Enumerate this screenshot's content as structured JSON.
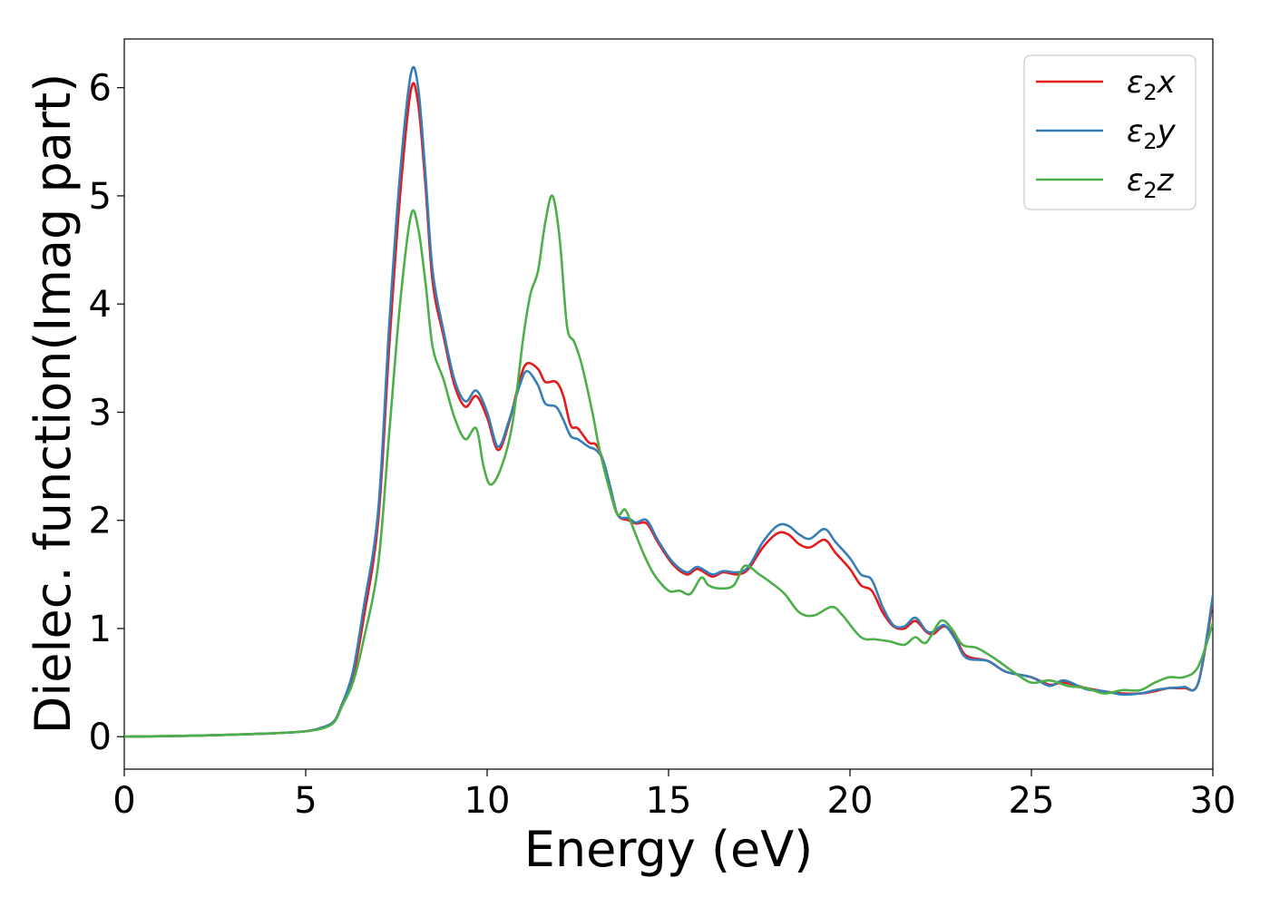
{
  "chart_data": {
    "type": "line",
    "title": "",
    "xlabel": "Energy (eV)",
    "ylabel": "Dielec. function(Imag part)",
    "xlim": [
      0,
      30
    ],
    "ylim": [
      -0.3,
      6.45
    ],
    "xticks": [
      0,
      5,
      10,
      15,
      20,
      25,
      30
    ],
    "yticks": [
      0,
      1,
      2,
      3,
      4,
      5,
      6
    ],
    "grid": false,
    "legend_position": "top-right",
    "series": [
      {
        "name": "ε₂x",
        "legend_base": "ε",
        "legend_sub": "2",
        "legend_var": "x",
        "color": "#e41a1c",
        "points": [
          [
            0,
            0.0
          ],
          [
            2,
            0.01
          ],
          [
            4,
            0.03
          ],
          [
            5,
            0.05
          ],
          [
            5.5,
            0.09
          ],
          [
            5.8,
            0.15
          ],
          [
            6.0,
            0.3
          ],
          [
            6.3,
            0.55
          ],
          [
            6.6,
            1.1
          ],
          [
            7.0,
            2.0
          ],
          [
            7.3,
            3.6
          ],
          [
            7.6,
            5.0
          ],
          [
            7.9,
            5.98
          ],
          [
            8.1,
            5.85
          ],
          [
            8.3,
            5.1
          ],
          [
            8.5,
            4.2
          ],
          [
            8.8,
            3.7
          ],
          [
            9.1,
            3.25
          ],
          [
            9.4,
            3.05
          ],
          [
            9.7,
            3.15
          ],
          [
            10.0,
            2.95
          ],
          [
            10.3,
            2.65
          ],
          [
            10.6,
            2.9
          ],
          [
            10.9,
            3.3
          ],
          [
            11.1,
            3.45
          ],
          [
            11.4,
            3.4
          ],
          [
            11.6,
            3.28
          ],
          [
            11.9,
            3.28
          ],
          [
            12.1,
            3.15
          ],
          [
            12.3,
            2.88
          ],
          [
            12.5,
            2.85
          ],
          [
            12.8,
            2.72
          ],
          [
            13.0,
            2.7
          ],
          [
            13.2,
            2.55
          ],
          [
            13.4,
            2.3
          ],
          [
            13.6,
            2.05
          ],
          [
            13.9,
            2.0
          ],
          [
            14.1,
            1.97
          ],
          [
            14.4,
            1.97
          ],
          [
            14.7,
            1.8
          ],
          [
            15.1,
            1.6
          ],
          [
            15.5,
            1.5
          ],
          [
            15.8,
            1.55
          ],
          [
            16.2,
            1.48
          ],
          [
            16.5,
            1.52
          ],
          [
            16.9,
            1.5
          ],
          [
            17.2,
            1.55
          ],
          [
            17.6,
            1.75
          ],
          [
            18.0,
            1.88
          ],
          [
            18.3,
            1.87
          ],
          [
            18.6,
            1.78
          ],
          [
            18.9,
            1.75
          ],
          [
            19.3,
            1.82
          ],
          [
            19.6,
            1.7
          ],
          [
            20.0,
            1.55
          ],
          [
            20.3,
            1.4
          ],
          [
            20.6,
            1.35
          ],
          [
            20.9,
            1.15
          ],
          [
            21.2,
            1.02
          ],
          [
            21.5,
            1.0
          ],
          [
            21.8,
            1.07
          ],
          [
            22.1,
            0.97
          ],
          [
            22.3,
            0.95
          ],
          [
            22.6,
            1.02
          ],
          [
            22.9,
            0.92
          ],
          [
            23.2,
            0.75
          ],
          [
            23.8,
            0.7
          ],
          [
            24.3,
            0.6
          ],
          [
            25.0,
            0.55
          ],
          [
            25.5,
            0.48
          ],
          [
            25.9,
            0.5
          ],
          [
            26.5,
            0.45
          ],
          [
            27.0,
            0.42
          ],
          [
            27.5,
            0.4
          ],
          [
            28.0,
            0.4
          ],
          [
            28.4,
            0.42
          ],
          [
            28.8,
            0.45
          ],
          [
            29.2,
            0.45
          ],
          [
            29.6,
            0.5
          ],
          [
            30.0,
            1.25
          ]
        ]
      },
      {
        "name": "ε₂y",
        "legend_base": "ε",
        "legend_sub": "2",
        "legend_var": "y",
        "color": "#377eb8",
        "points": [
          [
            0,
            0.0
          ],
          [
            2,
            0.01
          ],
          [
            4,
            0.03
          ],
          [
            5,
            0.05
          ],
          [
            5.5,
            0.09
          ],
          [
            5.8,
            0.15
          ],
          [
            6.0,
            0.3
          ],
          [
            6.3,
            0.6
          ],
          [
            6.6,
            1.2
          ],
          [
            7.0,
            2.1
          ],
          [
            7.3,
            3.8
          ],
          [
            7.6,
            5.2
          ],
          [
            7.9,
            6.13
          ],
          [
            8.1,
            6.0
          ],
          [
            8.3,
            5.2
          ],
          [
            8.5,
            4.3
          ],
          [
            8.8,
            3.75
          ],
          [
            9.1,
            3.3
          ],
          [
            9.4,
            3.1
          ],
          [
            9.7,
            3.2
          ],
          [
            10.0,
            3.0
          ],
          [
            10.3,
            2.68
          ],
          [
            10.6,
            2.92
          ],
          [
            10.9,
            3.25
          ],
          [
            11.1,
            3.38
          ],
          [
            11.4,
            3.25
          ],
          [
            11.6,
            3.08
          ],
          [
            11.9,
            3.05
          ],
          [
            12.1,
            2.93
          ],
          [
            12.3,
            2.78
          ],
          [
            12.5,
            2.75
          ],
          [
            12.8,
            2.68
          ],
          [
            13.0,
            2.65
          ],
          [
            13.2,
            2.55
          ],
          [
            13.4,
            2.3
          ],
          [
            13.6,
            2.05
          ],
          [
            13.9,
            2.02
          ],
          [
            14.1,
            1.98
          ],
          [
            14.4,
            2.0
          ],
          [
            14.7,
            1.82
          ],
          [
            15.1,
            1.62
          ],
          [
            15.5,
            1.52
          ],
          [
            15.8,
            1.57
          ],
          [
            16.2,
            1.5
          ],
          [
            16.5,
            1.53
          ],
          [
            16.9,
            1.52
          ],
          [
            17.2,
            1.57
          ],
          [
            17.6,
            1.8
          ],
          [
            18.0,
            1.95
          ],
          [
            18.3,
            1.95
          ],
          [
            18.6,
            1.87
          ],
          [
            18.9,
            1.83
          ],
          [
            19.3,
            1.92
          ],
          [
            19.6,
            1.8
          ],
          [
            20.0,
            1.65
          ],
          [
            20.3,
            1.5
          ],
          [
            20.6,
            1.45
          ],
          [
            20.9,
            1.2
          ],
          [
            21.2,
            1.03
          ],
          [
            21.5,
            1.02
          ],
          [
            21.8,
            1.1
          ],
          [
            22.1,
            0.98
          ],
          [
            22.3,
            0.97
          ],
          [
            22.6,
            1.03
          ],
          [
            22.9,
            0.9
          ],
          [
            23.2,
            0.73
          ],
          [
            23.8,
            0.7
          ],
          [
            24.3,
            0.6
          ],
          [
            25.0,
            0.55
          ],
          [
            25.5,
            0.47
          ],
          [
            25.9,
            0.52
          ],
          [
            26.5,
            0.44
          ],
          [
            27.0,
            0.42
          ],
          [
            27.5,
            0.39
          ],
          [
            28.0,
            0.4
          ],
          [
            28.4,
            0.43
          ],
          [
            28.8,
            0.45
          ],
          [
            29.2,
            0.46
          ],
          [
            29.6,
            0.5
          ],
          [
            30.0,
            1.3
          ]
        ]
      },
      {
        "name": "ε₂z",
        "legend_base": "ε",
        "legend_sub": "2",
        "legend_var": "z",
        "color": "#4daf4a",
        "points": [
          [
            0,
            0.0
          ],
          [
            2,
            0.01
          ],
          [
            4,
            0.03
          ],
          [
            5,
            0.05
          ],
          [
            5.5,
            0.08
          ],
          [
            5.8,
            0.14
          ],
          [
            6.0,
            0.28
          ],
          [
            6.3,
            0.5
          ],
          [
            6.6,
            0.9
          ],
          [
            7.0,
            1.6
          ],
          [
            7.3,
            2.8
          ],
          [
            7.6,
            4.0
          ],
          [
            7.9,
            4.82
          ],
          [
            8.1,
            4.7
          ],
          [
            8.3,
            4.2
          ],
          [
            8.5,
            3.6
          ],
          [
            8.8,
            3.3
          ],
          [
            9.1,
            2.95
          ],
          [
            9.4,
            2.75
          ],
          [
            9.7,
            2.85
          ],
          [
            9.9,
            2.5
          ],
          [
            10.1,
            2.33
          ],
          [
            10.4,
            2.5
          ],
          [
            10.7,
            2.9
          ],
          [
            11.0,
            3.7
          ],
          [
            11.2,
            4.1
          ],
          [
            11.4,
            4.3
          ],
          [
            11.6,
            4.75
          ],
          [
            11.8,
            5.0
          ],
          [
            12.0,
            4.6
          ],
          [
            12.2,
            3.8
          ],
          [
            12.4,
            3.65
          ],
          [
            12.6,
            3.45
          ],
          [
            12.9,
            3.0
          ],
          [
            13.1,
            2.65
          ],
          [
            13.4,
            2.25
          ],
          [
            13.6,
            2.05
          ],
          [
            13.8,
            2.1
          ],
          [
            14.0,
            1.95
          ],
          [
            14.3,
            1.7
          ],
          [
            14.6,
            1.5
          ],
          [
            15.0,
            1.35
          ],
          [
            15.3,
            1.35
          ],
          [
            15.6,
            1.32
          ],
          [
            15.9,
            1.47
          ],
          [
            16.1,
            1.4
          ],
          [
            16.4,
            1.37
          ],
          [
            16.8,
            1.4
          ],
          [
            17.1,
            1.58
          ],
          [
            17.5,
            1.5
          ],
          [
            17.8,
            1.43
          ],
          [
            18.2,
            1.32
          ],
          [
            18.6,
            1.15
          ],
          [
            19.0,
            1.12
          ],
          [
            19.5,
            1.2
          ],
          [
            19.8,
            1.12
          ],
          [
            20.3,
            0.92
          ],
          [
            20.7,
            0.9
          ],
          [
            21.1,
            0.88
          ],
          [
            21.5,
            0.85
          ],
          [
            21.8,
            0.92
          ],
          [
            22.1,
            0.87
          ],
          [
            22.5,
            1.07
          ],
          [
            22.8,
            1.0
          ],
          [
            23.1,
            0.85
          ],
          [
            23.5,
            0.82
          ],
          [
            24.0,
            0.72
          ],
          [
            24.5,
            0.6
          ],
          [
            25.0,
            0.5
          ],
          [
            25.5,
            0.52
          ],
          [
            26.0,
            0.47
          ],
          [
            26.5,
            0.45
          ],
          [
            27.0,
            0.4
          ],
          [
            27.5,
            0.43
          ],
          [
            28.0,
            0.43
          ],
          [
            28.4,
            0.5
          ],
          [
            28.8,
            0.55
          ],
          [
            29.2,
            0.55
          ],
          [
            29.6,
            0.65
          ],
          [
            30.0,
            1.05
          ]
        ]
      }
    ]
  }
}
